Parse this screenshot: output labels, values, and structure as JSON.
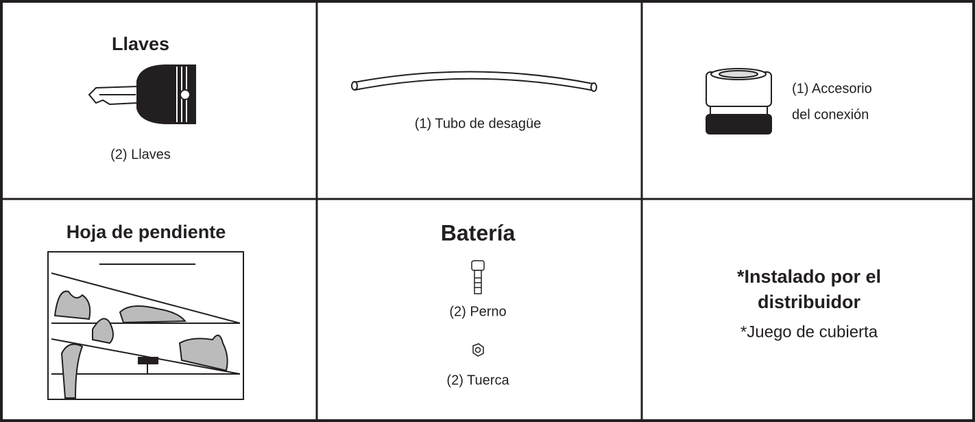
{
  "cells": [
    {
      "title": "Llaves",
      "label": "(2) Llaves"
    },
    {
      "label": "(1) Tubo de desagüe"
    },
    {
      "label_lines": [
        "(1) Accesorio",
        "del conexión"
      ]
    },
    {
      "title": "Hoja de pendiente"
    },
    {
      "title": "Batería",
      "items": [
        "(2) Perno",
        "(2) Tuerca"
      ]
    },
    {
      "title_lines": [
        "*Instalado por el",
        "distribuidor"
      ],
      "note": "*Juego de cubierta"
    }
  ]
}
